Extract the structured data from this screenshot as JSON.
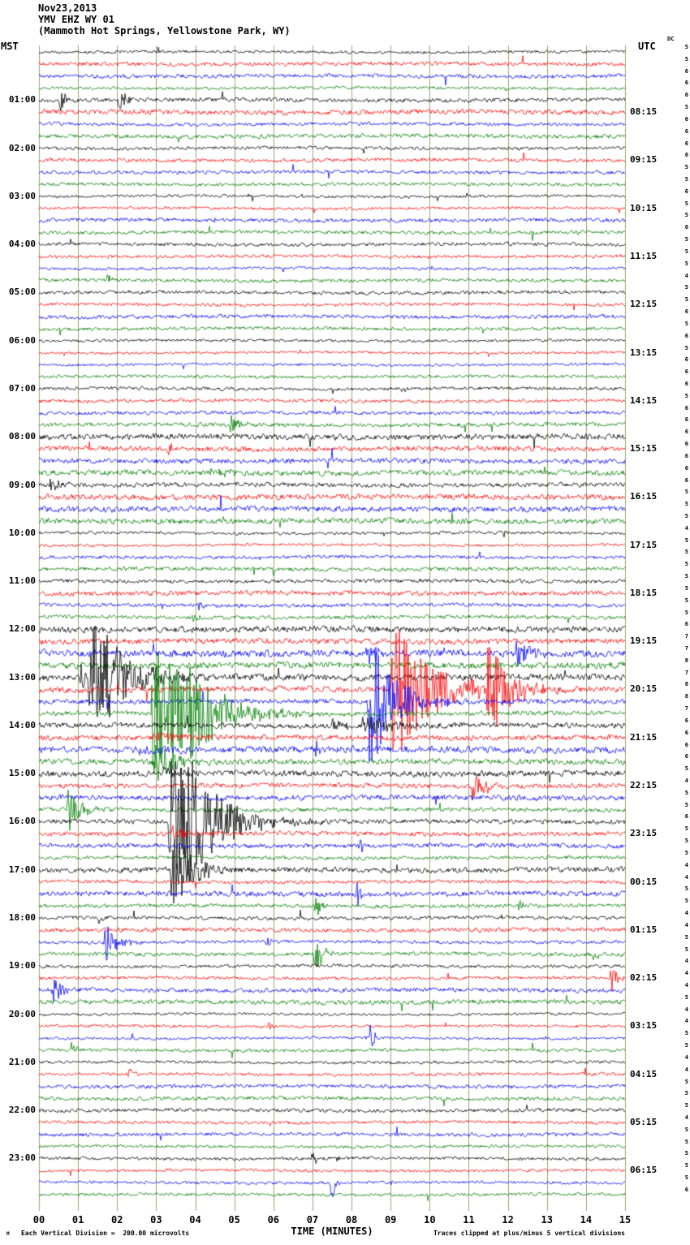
{
  "header": {
    "date": "Nov23,2013",
    "station": "YMV EHZ WY 01",
    "location": "(Mammoth Hot Springs, Yellowstone Park, WY)"
  },
  "axes": {
    "left_tz": "MST",
    "right_tz": "UTC",
    "dc_label": "DC",
    "xlabel": "TIME (MINUTES)"
  },
  "footer": {
    "corner_mark": "M",
    "scale_note": "Each Vertical Division =  200.00 microvolts",
    "clip_note": "Traces clipped at plus/minus 5 vertical divisions"
  },
  "chart_data": {
    "type": "line",
    "kind": "helicorder-seismogram",
    "station": "YMV EHZ WY 01",
    "date": "Nov23,2013",
    "xlabel": "TIME (MINUTES)",
    "x_ticks": [
      "00",
      "01",
      "02",
      "03",
      "04",
      "05",
      "06",
      "07",
      "08",
      "09",
      "10",
      "11",
      "12",
      "13",
      "14",
      "15"
    ],
    "minutes_per_trace": 15,
    "rows": 96,
    "start_time_mst": "00:00",
    "left_time_zone": "MST",
    "right_time_zone": "UTC",
    "microvolts_per_division": 200,
    "clip_divisions": 5,
    "grid_color": "#a0a078",
    "row_colors_cycle": [
      "#000000",
      "#ff0000",
      "#0000ff",
      "#007f00"
    ],
    "left_labels": [
      {
        "row": 4,
        "text": "01:00"
      },
      {
        "row": 8,
        "text": "02:00"
      },
      {
        "row": 12,
        "text": "03:00"
      },
      {
        "row": 16,
        "text": "04:00"
      },
      {
        "row": 20,
        "text": "05:00"
      },
      {
        "row": 24,
        "text": "06:00"
      },
      {
        "row": 28,
        "text": "07:00"
      },
      {
        "row": 32,
        "text": "08:00"
      },
      {
        "row": 36,
        "text": "09:00"
      },
      {
        "row": 40,
        "text": "10:00"
      },
      {
        "row": 44,
        "text": "11:00"
      },
      {
        "row": 48,
        "text": "12:00"
      },
      {
        "row": 52,
        "text": "13:00"
      },
      {
        "row": 56,
        "text": "14:00"
      },
      {
        "row": 60,
        "text": "15:00"
      },
      {
        "row": 64,
        "text": "16:00"
      },
      {
        "row": 68,
        "text": "17:00"
      },
      {
        "row": 72,
        "text": "18:00"
      },
      {
        "row": 76,
        "text": "19:00"
      },
      {
        "row": 80,
        "text": "20:00"
      },
      {
        "row": 84,
        "text": "21:00"
      },
      {
        "row": 88,
        "text": "22:00"
      },
      {
        "row": 92,
        "text": "23:00"
      }
    ],
    "right_labels": [
      {
        "row": 5,
        "text": "08:15"
      },
      {
        "row": 9,
        "text": "09:15"
      },
      {
        "row": 13,
        "text": "10:15"
      },
      {
        "row": 17,
        "text": "11:15"
      },
      {
        "row": 21,
        "text": "12:15"
      },
      {
        "row": 25,
        "text": "13:15"
      },
      {
        "row": 29,
        "text": "14:15"
      },
      {
        "row": 33,
        "text": "15:15"
      },
      {
        "row": 37,
        "text": "16:15"
      },
      {
        "row": 41,
        "text": "17:15"
      },
      {
        "row": 45,
        "text": "18:15"
      },
      {
        "row": 49,
        "text": "19:15"
      },
      {
        "row": 53,
        "text": "20:15"
      },
      {
        "row": 57,
        "text": "21:15"
      },
      {
        "row": 61,
        "text": "22:15"
      },
      {
        "row": 65,
        "text": "23:15"
      },
      {
        "row": 69,
        "text": "00:15"
      },
      {
        "row": 73,
        "text": "01:15"
      },
      {
        "row": 77,
        "text": "02:15"
      },
      {
        "row": 81,
        "text": "03:15"
      },
      {
        "row": 85,
        "text": "04:15"
      },
      {
        "row": 89,
        "text": "05:15"
      },
      {
        "row": 93,
        "text": "06:15"
      }
    ],
    "dc_values": [
      5,
      5,
      6,
      6,
      6,
      5,
      6,
      6,
      6,
      6,
      5,
      5,
      6,
      5,
      5,
      6,
      5,
      5,
      5,
      4,
      5,
      5,
      6,
      5,
      6,
      5,
      6,
      6,
      6,
      5,
      6,
      6,
      6,
      6,
      6,
      6,
      6,
      5,
      5,
      5,
      4,
      5,
      5,
      5,
      5,
      5,
      5,
      5,
      6,
      7,
      7,
      8,
      7,
      8,
      8,
      7,
      6,
      6,
      6,
      6,
      5,
      4,
      5,
      5,
      6,
      5,
      5,
      5,
      4,
      4,
      5,
      5,
      4,
      4,
      5,
      5,
      4,
      4,
      4,
      5,
      4,
      4,
      5,
      5,
      4,
      4,
      5,
      5,
      5,
      4,
      5,
      5,
      5,
      5,
      5,
      6
    ],
    "noise_boost_ranges": [
      {
        "from": 4,
        "to": 7,
        "boost": 1.25
      },
      {
        "from": 32,
        "to": 39,
        "boost": 1.45
      },
      {
        "from": 44,
        "to": 47,
        "boost": 1.2
      },
      {
        "from": 48,
        "to": 60,
        "boost": 1.75
      },
      {
        "from": 61,
        "to": 71,
        "boost": 1.35
      },
      {
        "from": 72,
        "to": 79,
        "boost": 1.15
      }
    ],
    "events": [
      {
        "row": 4,
        "min": 0.55,
        "amp": 14,
        "coda": 0.25
      },
      {
        "row": 4,
        "min": 2.05,
        "amp": 16,
        "coda": 0.35
      },
      {
        "row": 19,
        "min": 1.75,
        "amp": 8,
        "coda": 0.15
      },
      {
        "row": 28,
        "min": 9.3,
        "amp": 6,
        "coda": 0.12
      },
      {
        "row": 31,
        "min": 4.85,
        "amp": 14,
        "coda": 0.6
      },
      {
        "row": 33,
        "min": 3.3,
        "amp": 9,
        "coda": 0.2
      },
      {
        "row": 35,
        "min": 4.6,
        "amp": 5,
        "coda": 0.8
      },
      {
        "row": 36,
        "min": 0.3,
        "amp": 9,
        "coda": 0.5
      },
      {
        "row": 46,
        "min": 4.1,
        "amp": 8,
        "coda": 0.15
      },
      {
        "row": 47,
        "min": 3.95,
        "amp": 7,
        "coda": 0.2
      },
      {
        "row": 50,
        "min": 8.4,
        "amp": 24,
        "coda": 0.3
      },
      {
        "row": 50,
        "min": 12.2,
        "amp": 28,
        "coda": 0.5
      },
      {
        "row": 52,
        "min": 1.08,
        "amp": 35,
        "coda": 0.15
      },
      {
        "row": 52,
        "min": 1.3,
        "amp": 95,
        "coda": 1.3
      },
      {
        "row": 53,
        "min": 9.05,
        "amp": 95,
        "coda": 1.6
      },
      {
        "row": 53,
        "min": 11.5,
        "amp": 70,
        "coda": 0.8
      },
      {
        "row": 54,
        "min": 8.45,
        "amp": 95,
        "coda": 1.0
      },
      {
        "row": 55,
        "min": 2.9,
        "amp": 100,
        "coda": 1.8
      },
      {
        "row": 55,
        "min": 3.85,
        "amp": 55,
        "coda": 0.8
      },
      {
        "row": 56,
        "min": 7.5,
        "amp": 9,
        "coda": 0.6
      },
      {
        "row": 56,
        "min": 8.3,
        "amp": 12,
        "coda": 1.2
      },
      {
        "row": 57,
        "min": 2.95,
        "amp": 8,
        "coda": 1.2
      },
      {
        "row": 58,
        "min": 2.6,
        "amp": 7,
        "coda": 1.0
      },
      {
        "row": 58,
        "min": 7.1,
        "amp": 9,
        "coda": 0.15
      },
      {
        "row": 59,
        "min": 2.95,
        "amp": 34,
        "coda": 0.7
      },
      {
        "row": 60,
        "min": 3.2,
        "amp": 11,
        "coda": 0.6
      },
      {
        "row": 61,
        "min": 11.1,
        "amp": 20,
        "coda": 0.5
      },
      {
        "row": 63,
        "min": 0.75,
        "amp": 28,
        "coda": 0.5
      },
      {
        "row": 64,
        "min": 3.35,
        "amp": 100,
        "coda": 1.6
      },
      {
        "row": 64,
        "min": 3.8,
        "amp": 65,
        "coda": 0.8
      },
      {
        "row": 65,
        "min": 3.4,
        "amp": 10,
        "coda": 1.0
      },
      {
        "row": 66,
        "min": 8.2,
        "amp": 15,
        "coda": 0.15
      },
      {
        "row": 68,
        "min": 3.4,
        "amp": 50,
        "coda": 0.9
      },
      {
        "row": 70,
        "min": 8.15,
        "amp": 20,
        "coda": 0.12
      },
      {
        "row": 71,
        "min": 7.1,
        "amp": 17,
        "coda": 0.2
      },
      {
        "row": 71,
        "min": 12.3,
        "amp": 9,
        "coda": 0.15
      },
      {
        "row": 72,
        "min": 1.5,
        "amp": 9,
        "coda": 0.2
      },
      {
        "row": 74,
        "min": 1.7,
        "amp": 26,
        "coda": 0.45
      },
      {
        "row": 74,
        "min": 5.85,
        "amp": 7,
        "coda": 0.12
      },
      {
        "row": 75,
        "min": 7.05,
        "amp": 30,
        "coda": 0.35
      },
      {
        "row": 75,
        "min": 14.2,
        "amp": 10,
        "coda": 0.15
      },
      {
        "row": 77,
        "min": 14.65,
        "amp": 20,
        "coda": 0.3
      },
      {
        "row": 78,
        "min": 0.35,
        "amp": 24,
        "coda": 0.4
      },
      {
        "row": 81,
        "min": 5.9,
        "amp": 7,
        "coda": 0.12
      },
      {
        "row": 82,
        "min": 8.5,
        "amp": 32,
        "coda": 0.12
      },
      {
        "row": 83,
        "min": 0.9,
        "amp": 11,
        "coda": 0.15
      },
      {
        "row": 85,
        "min": 2.3,
        "amp": 13,
        "coda": 0.12
      },
      {
        "row": 92,
        "min": 7.0,
        "amp": 12,
        "coda": 0.2
      },
      {
        "row": 92,
        "min": 7.6,
        "amp": 7,
        "coda": 0.2
      },
      {
        "row": 94,
        "min": 7.5,
        "amp": 26,
        "coda": 0.12
      }
    ]
  }
}
